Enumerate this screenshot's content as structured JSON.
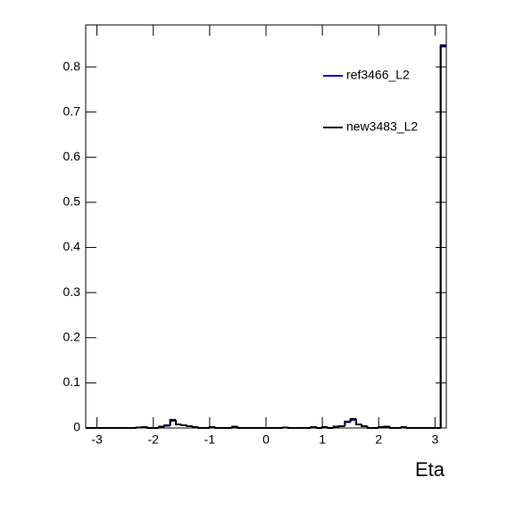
{
  "chart_data": {
    "type": "histogram",
    "xlabel": "Eta",
    "bins": [
      -3.2,
      -3.1,
      -3.0,
      -2.9,
      -2.8,
      -2.7,
      -2.6,
      -2.5,
      -2.4,
      -2.3,
      -2.2,
      -2.1,
      -2.0,
      -1.9,
      -1.8,
      -1.7,
      -1.6,
      -1.5,
      -1.4,
      -1.3,
      -1.2,
      -1.1,
      -1.0,
      -0.9,
      -0.8,
      -0.7,
      -0.6,
      -0.5,
      -0.4,
      -0.3,
      -0.2,
      -0.1,
      0,
      0.1,
      0.2,
      0.3,
      0.4,
      0.5,
      0.6,
      0.7,
      0.8,
      0.9,
      1.0,
      1.1,
      1.2,
      1.3,
      1.4,
      1.5,
      1.6,
      1.7,
      1.8,
      1.9,
      2.0,
      2.1,
      2.2,
      2.3,
      2.4,
      2.5,
      2.6,
      2.7,
      2.8,
      2.9,
      3.0,
      3.1,
      3.2
    ],
    "series": [
      {
        "name": "ref3466_L2",
        "color": "#0000cc",
        "values": [
          0,
          0,
          0,
          0,
          0,
          0,
          0,
          0,
          0,
          0.001,
          0.002,
          0,
          0,
          0.003,
          0.005,
          0.016,
          0.008,
          0.006,
          0.004,
          0.002,
          0,
          0,
          0.002,
          0,
          0,
          0,
          0.003,
          0,
          0,
          0,
          0,
          0,
          0,
          0,
          0,
          0.001,
          0,
          0,
          0,
          0,
          0.002,
          0,
          0.002,
          0,
          0.003,
          0.004,
          0.013,
          0.018,
          0.008,
          0.004,
          0,
          0,
          0.002,
          0.003,
          0,
          0,
          0.002,
          0,
          0,
          0,
          0,
          0,
          0,
          0.845
        ]
      },
      {
        "name": "new3483_L2",
        "color": "#000000",
        "values": [
          0,
          0,
          0,
          0,
          0,
          0,
          0,
          0,
          0,
          0.001,
          0.002,
          0,
          0,
          0.003,
          0.006,
          0.018,
          0.008,
          0.006,
          0.004,
          0.002,
          0,
          0,
          0.002,
          0,
          0,
          0,
          0.003,
          0,
          0,
          0,
          0,
          0,
          0,
          0,
          0,
          0.001,
          0,
          0,
          0,
          0,
          0.002,
          0,
          0.002,
          0,
          0.003,
          0.004,
          0.014,
          0.02,
          0.008,
          0.004,
          0,
          0,
          0.002,
          0.003,
          0,
          0,
          0.002,
          0,
          0,
          0,
          0,
          0,
          0,
          0.848
        ]
      }
    ],
    "xlim": [
      -3.2,
      3.2
    ],
    "ylim": [
      0,
      0.893
    ],
    "xticks": [
      -3,
      -2,
      -1,
      0,
      1,
      2,
      3
    ],
    "yticks": [
      0,
      0.1,
      0.2,
      0.3,
      0.4,
      0.5,
      0.6,
      0.7,
      0.8
    ],
    "legend": "upper-right",
    "grid": false
  }
}
